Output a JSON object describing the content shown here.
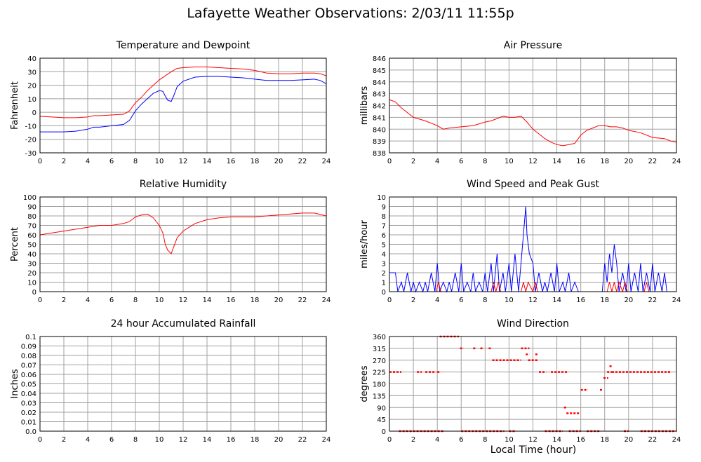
{
  "header": {
    "title": "Lafayette Weather Observations: 2/03/11 11:55p"
  },
  "footer": {
    "xlabel": "Local Time (hour)"
  },
  "chart_data": [
    {
      "id": "temp",
      "type": "line",
      "title": "Temperature and Dewpoint",
      "ylabel": "Fahrenheit",
      "ylim": [
        -30,
        40
      ],
      "yticks": [
        "-30",
        "-20",
        "-10",
        "0",
        "10",
        "20",
        "30",
        "40"
      ],
      "xlim": [
        0,
        24
      ],
      "xticks": [
        "0",
        "2",
        "4",
        "6",
        "8",
        "10",
        "12",
        "14",
        "16",
        "18",
        "20",
        "22",
        "24"
      ],
      "grid": true,
      "series": [
        {
          "color": "#ff0000",
          "x": [
            0,
            1,
            2,
            3,
            4,
            4.5,
            5,
            6,
            7,
            7.5,
            8,
            8.5,
            9,
            9.5,
            10,
            10.5,
            11,
            11.5,
            12,
            13,
            14,
            15,
            16,
            17,
            18,
            19,
            20,
            21,
            22,
            23,
            23.5,
            24
          ],
          "y": [
            -3,
            -3.5,
            -4,
            -4,
            -3.5,
            -2.5,
            -2.5,
            -2,
            -1.5,
            1,
            7,
            11,
            16,
            20,
            24,
            27,
            30,
            32.5,
            33,
            33.5,
            33.5,
            33,
            32.5,
            32,
            31,
            29,
            28.5,
            28.5,
            29,
            29,
            28.5,
            27
          ]
        },
        {
          "color": "#0000ff",
          "x": [
            0,
            1,
            2,
            3,
            4,
            4.5,
            5,
            6,
            7,
            7.5,
            8,
            8.5,
            9,
            9.5,
            10,
            10.3,
            10.5,
            10.7,
            11,
            11.2,
            11.5,
            12,
            13,
            14,
            15,
            16,
            17,
            18,
            19,
            20,
            21,
            22,
            23,
            23.5,
            24
          ],
          "y": [
            -14.5,
            -14.5,
            -14.5,
            -14,
            -12.5,
            -11,
            -11,
            -10,
            -9,
            -6,
            1,
            6,
            10,
            14,
            16,
            15.5,
            12,
            9,
            8,
            12,
            19,
            23,
            26,
            26.5,
            26.5,
            26,
            25.5,
            24.5,
            23.5,
            23.5,
            23.5,
            24,
            24.5,
            23.5,
            21
          ]
        }
      ]
    },
    {
      "id": "pressure",
      "type": "line",
      "title": "Air Pressure",
      "ylabel": "millibars",
      "ylim": [
        838,
        846
      ],
      "yticks": [
        "838",
        "839",
        "840",
        "841",
        "842",
        "843",
        "844",
        "845",
        "846"
      ],
      "xlim": [
        0,
        24
      ],
      "xticks": [
        "0",
        "2",
        "4",
        "6",
        "8",
        "10",
        "12",
        "14",
        "16",
        "18",
        "20",
        "22",
        "24"
      ],
      "grid": true,
      "series": [
        {
          "color": "#ff0000",
          "x": [
            0,
            0.5,
            1,
            1.5,
            2,
            3,
            4,
            4.5,
            5,
            6,
            7,
            8,
            8.5,
            9,
            9.5,
            10,
            10.5,
            11,
            11.5,
            12,
            12.5,
            13,
            13.5,
            14,
            14.5,
            15,
            15.5,
            16,
            16.5,
            17,
            17.5,
            18,
            18.5,
            19,
            19.5,
            20,
            21,
            22,
            23,
            23.5,
            24
          ],
          "y": [
            842.5,
            842.3,
            841.8,
            841.4,
            841,
            840.7,
            840.3,
            840,
            840.1,
            840.2,
            840.3,
            840.6,
            840.7,
            840.9,
            841.1,
            841,
            841,
            841.1,
            840.6,
            840,
            839.6,
            839.2,
            838.9,
            838.7,
            838.6,
            838.7,
            838.8,
            839.5,
            839.9,
            840.1,
            840.3,
            840.3,
            840.2,
            840.2,
            840.1,
            839.9,
            839.7,
            839.3,
            839.2,
            839,
            838.9
          ]
        }
      ]
    },
    {
      "id": "humidity",
      "type": "line",
      "title": "Relative Humidity",
      "ylabel": "Percent",
      "ylim": [
        0,
        100
      ],
      "yticks": [
        "0",
        "10",
        "20",
        "30",
        "40",
        "50",
        "60",
        "70",
        "80",
        "90",
        "100"
      ],
      "xlim": [
        0,
        24
      ],
      "xticks": [
        "0",
        "2",
        "4",
        "6",
        "8",
        "10",
        "12",
        "14",
        "16",
        "18",
        "20",
        "22",
        "24"
      ],
      "grid": true,
      "series": [
        {
          "color": "#ff0000",
          "x": [
            0,
            1,
            2,
            3,
            4,
            5,
            6,
            7,
            7.5,
            8,
            8.5,
            9,
            9.5,
            10,
            10.3,
            10.5,
            10.7,
            11,
            11.2,
            11.5,
            12,
            12.5,
            13,
            14,
            15,
            16,
            17,
            18,
            19,
            20,
            21,
            22,
            23,
            24
          ],
          "y": [
            60,
            62,
            64,
            66,
            68,
            70,
            70,
            72,
            74,
            79,
            81,
            82,
            78,
            70,
            62,
            50,
            44,
            40,
            47,
            57,
            64,
            68,
            72,
            76,
            78,
            79,
            79,
            79,
            80,
            81,
            82,
            83,
            83,
            80
          ]
        }
      ]
    },
    {
      "id": "wind",
      "type": "line",
      "title": "Wind Speed and Peak Gust",
      "ylabel": "miles/hour",
      "ylim": [
        0,
        10
      ],
      "yticks": [
        "0",
        "1",
        "2",
        "3",
        "4",
        "5",
        "6",
        "7",
        "8",
        "9",
        "10"
      ],
      "xlim": [
        0,
        24
      ],
      "xticks": [
        "0",
        "2",
        "4",
        "6",
        "8",
        "10",
        "12",
        "14",
        "16",
        "18",
        "20",
        "22",
        "24"
      ],
      "grid": true,
      "series": [
        {
          "color": "#0000ff",
          "x": [
            0,
            0.5,
            0.7,
            1,
            1.2,
            1.5,
            1.8,
            2,
            2.2,
            2.5,
            2.8,
            3,
            3.2,
            3.5,
            3.8,
            4,
            4.2,
            4.5,
            4.8,
            5,
            5.2,
            5.5,
            5.8,
            6,
            6.2,
            6.5,
            6.8,
            7,
            7.2,
            7.5,
            7.8,
            8,
            8.2,
            8.5,
            8.7,
            9,
            9.2,
            9.5,
            9.7,
            10,
            10.2,
            10.5,
            10.8,
            11,
            11.2,
            11.4,
            11.5,
            11.7,
            12,
            12.2,
            12.5,
            12.8,
            13,
            13.2,
            13.5,
            13.8,
            14,
            14.2,
            14.5,
            14.7,
            15,
            15.2,
            15.5,
            15.8,
            16,
            16.5,
            17,
            17.5,
            17.8,
            18,
            18.2,
            18.4,
            18.6,
            18.8,
            19,
            19.2,
            19.5,
            19.8,
            20,
            20.2,
            20.5,
            20.8,
            21,
            21.2,
            21.5,
            21.8,
            22,
            22.2,
            22.5,
            22.8,
            23,
            23.2,
            23.5,
            24
          ],
          "y": [
            2,
            2,
            0,
            1,
            0,
            2,
            0,
            1,
            0,
            1,
            0,
            1,
            0,
            2,
            0,
            3,
            0,
            1,
            0,
            1,
            0,
            2,
            0,
            3,
            0,
            1,
            0,
            2,
            0,
            1,
            0,
            2,
            0,
            3,
            0,
            4,
            0,
            2,
            0,
            3,
            0,
            4,
            0,
            3,
            6,
            9,
            6,
            4,
            3,
            0,
            2,
            0,
            1,
            0,
            2,
            0,
            3,
            0,
            1,
            0,
            2,
            0,
            1,
            0,
            0,
            0,
            0,
            0,
            0,
            3,
            1,
            4,
            2,
            5,
            3,
            0,
            2,
            0,
            3,
            0,
            2,
            0,
            3,
            0,
            2,
            0,
            3,
            0,
            2,
            0,
            2,
            0,
            0,
            0
          ]
        },
        {
          "color": "#ff0000",
          "x": [
            0,
            3.9,
            4.1,
            4.3,
            8.5,
            8.7,
            8.9,
            9.1,
            9.3,
            9.5,
            11,
            11.2,
            11.4,
            11.6,
            12,
            12.2,
            12.4,
            18.2,
            18.4,
            18.6,
            18.8,
            19,
            19.2,
            19.5,
            19.7,
            19.9,
            21.3,
            21.5,
            21.7,
            24
          ],
          "y": [
            0,
            0,
            1,
            0,
            0,
            1,
            0,
            1,
            0,
            0,
            0,
            1,
            0,
            1,
            0,
            1,
            0,
            0,
            1,
            0,
            1,
            0,
            1,
            0,
            1,
            0,
            0,
            1,
            0,
            0
          ]
        }
      ]
    },
    {
      "id": "rain",
      "type": "line",
      "title": "24 hour Accumulated Rainfall",
      "ylabel": "Inches",
      "ylim": [
        0,
        0.1
      ],
      "yticks": [
        "0.0",
        "0.01",
        "0.02",
        "0.03",
        "0.04",
        "0.05",
        "0.06",
        "0.07",
        "0.08",
        "0.09",
        "0.1"
      ],
      "xlim": [
        0,
        24
      ],
      "xticks": [
        "0",
        "2",
        "4",
        "6",
        "8",
        "10",
        "12",
        "14",
        "16",
        "18",
        "20",
        "22",
        "24"
      ],
      "grid": true,
      "series": [
        {
          "color": "#ff0000",
          "x": [
            0,
            24
          ],
          "y": [
            0,
            0
          ]
        }
      ]
    },
    {
      "id": "direction",
      "type": "scatter",
      "title": "Wind Direction",
      "ylabel": "degrees",
      "ylim": [
        0,
        360
      ],
      "yticks": [
        "0",
        "45",
        "90",
        "135",
        "180",
        "225",
        "270",
        "315",
        "360"
      ],
      "xlim": [
        0,
        24
      ],
      "xticks": [
        "0",
        "2",
        "4",
        "6",
        "8",
        "10",
        "12",
        "14",
        "16",
        "18",
        "20",
        "22",
        "24"
      ],
      "grid": true,
      "series": [
        {
          "color": "#ff0000",
          "segments": [
            {
              "x0": 0.0,
              "x1": 1.0,
              "y": 225
            },
            {
              "x0": 2.3,
              "x1": 2.7,
              "y": 225
            },
            {
              "x0": 3.0,
              "x1": 3.9,
              "y": 225
            },
            {
              "x0": 4.0,
              "x1": 4.3,
              "y": 225
            },
            {
              "x0": 0.8,
              "x1": 4.6,
              "y": 0
            },
            {
              "x0": 4.2,
              "x1": 5.8,
              "y": 360
            },
            {
              "x0": 5.9,
              "x1": 6.2,
              "y": 315
            },
            {
              "x0": 7.0,
              "x1": 7.3,
              "y": 315
            },
            {
              "x0": 7.6,
              "x1": 7.9,
              "y": 315
            },
            {
              "x0": 8.3,
              "x1": 8.5,
              "y": 315
            },
            {
              "x0": 6.0,
              "x1": 9.6,
              "y": 0
            },
            {
              "x0": 8.6,
              "x1": 11.0,
              "y": 270
            },
            {
              "x0": 10.0,
              "x1": 10.6,
              "y": 0
            },
            {
              "x0": 11.0,
              "x1": 11.7,
              "y": 315
            },
            {
              "x0": 11.4,
              "x1": 11.7,
              "y": 292
            },
            {
              "x0": 11.6,
              "x1": 12.4,
              "y": 270
            },
            {
              "x0": 12.2,
              "x1": 12.4,
              "y": 292
            },
            {
              "x0": 12.5,
              "x1": 13.1,
              "y": 225
            },
            {
              "x0": 13.5,
              "x1": 14.9,
              "y": 225
            },
            {
              "x0": 13.0,
              "x1": 14.5,
              "y": 0
            },
            {
              "x0": 14.6,
              "x1": 14.8,
              "y": 90
            },
            {
              "x0": 14.8,
              "x1": 15.9,
              "y": 68
            },
            {
              "x0": 15.0,
              "x1": 16.0,
              "y": 0
            },
            {
              "x0": 16.0,
              "x1": 16.6,
              "y": 157
            },
            {
              "x0": 16.5,
              "x1": 17.6,
              "y": 0
            },
            {
              "x0": 17.6,
              "x1": 17.9,
              "y": 157
            },
            {
              "x0": 17.9,
              "x1": 18.3,
              "y": 202
            },
            {
              "x0": 18.2,
              "x1": 18.6,
              "y": 225
            },
            {
              "x0": 18.4,
              "x1": 18.6,
              "y": 247
            },
            {
              "x0": 18.6,
              "x1": 23.5,
              "y": 225
            },
            {
              "x0": 19.6,
              "x1": 20.0,
              "y": 0
            },
            {
              "x0": 21.0,
              "x1": 24.0,
              "y": 0
            }
          ]
        }
      ]
    }
  ]
}
